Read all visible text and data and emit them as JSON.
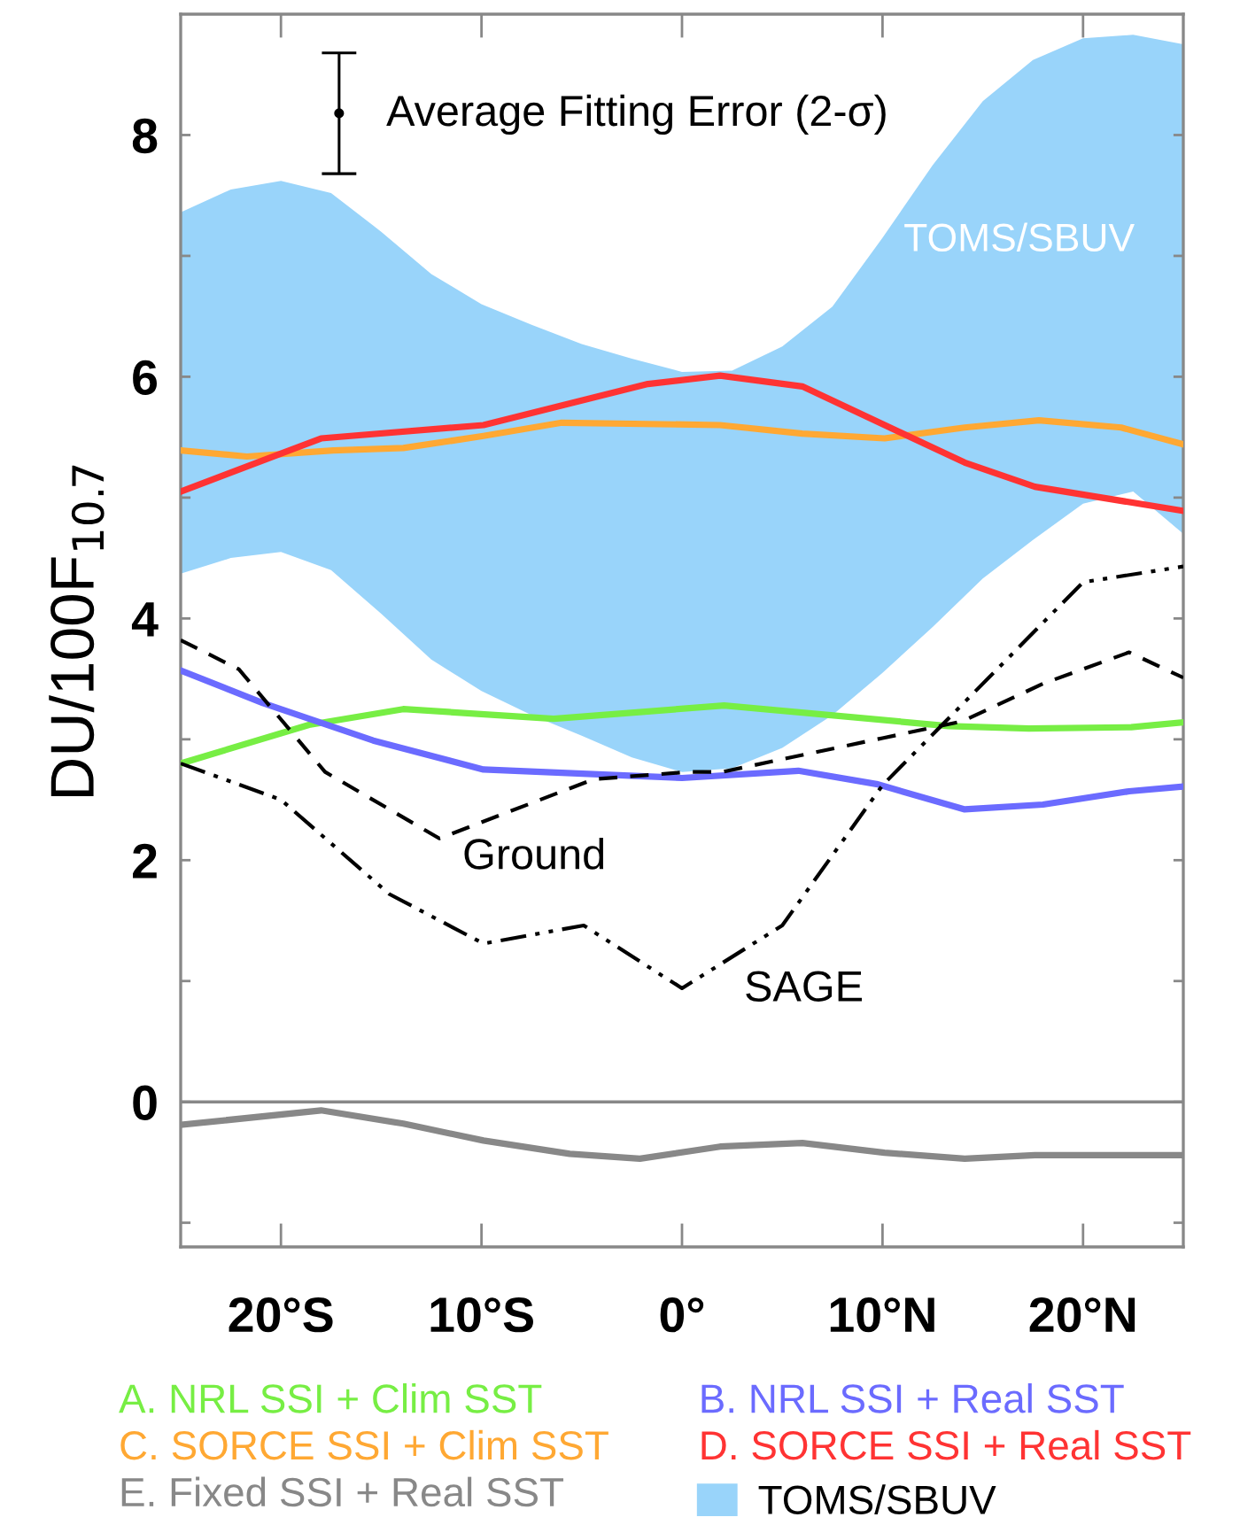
{
  "chart_data": {
    "type": "line",
    "xlim": [
      -25,
      25
    ],
    "xticks": [
      {
        "value": -20,
        "label": "20°S"
      },
      {
        "value": -10,
        "label": "10°S"
      },
      {
        "value": 0,
        "label": "0°"
      },
      {
        "value": 10,
        "label": "10°N"
      },
      {
        "value": 20,
        "label": "20°N"
      }
    ],
    "ylim": [
      -1.2,
      9
    ],
    "yticks": [
      {
        "value": -1,
        "label": null
      },
      0,
      {
        "value": 1,
        "label": null
      },
      2,
      {
        "value": 3,
        "label": null
      },
      4,
      {
        "value": 5,
        "label": null
      },
      6,
      {
        "value": 7,
        "label": null
      },
      8
    ],
    "ylabel": "DU/100F$_{10.7}$",
    "grid": false,
    "legend": "bottom",
    "series": [
      {
        "name": "A. NRL SSI + Clim SST",
        "color": "#77ee44",
        "line_style": "solid",
        "x": [
          -25,
          -18.6,
          -13.9,
          -6.4,
          2.1,
          13.3,
          17.3,
          22.4,
          25
        ],
        "values": [
          2.8,
          3.12,
          3.25,
          3.17,
          3.28,
          3.11,
          3.09,
          3.1,
          3.14
        ]
      },
      {
        "name": "B. NRL SSI + Real SST",
        "color": "#6b6bff",
        "line_style": "solid",
        "x": [
          -25,
          -20.9,
          -15.4,
          -9.9,
          0,
          5.8,
          9.7,
          14.1,
          18,
          22.3,
          25
        ],
        "values": [
          3.57,
          3.3,
          2.99,
          2.75,
          2.68,
          2.74,
          2.63,
          2.42,
          2.46,
          2.57,
          2.61
        ]
      },
      {
        "name": "C. SORCE SSI + Clim SST",
        "color": "#ffa833",
        "line_style": "solid",
        "x": [
          -25,
          -21.7,
          -17.4,
          -13.9,
          -9.9,
          -6,
          1.9,
          6,
          10.1,
          14.1,
          17.8,
          21.9,
          25
        ],
        "values": [
          5.39,
          5.34,
          5.39,
          5.41,
          5.51,
          5.62,
          5.6,
          5.53,
          5.49,
          5.58,
          5.64,
          5.58,
          5.44
        ]
      },
      {
        "name": "D. SORCE SSI + Real SST",
        "color": "#ff3333",
        "line_style": "solid",
        "x": [
          -25,
          -18,
          -9.9,
          -1.7,
          1.9,
          6,
          14.1,
          17.6,
          25
        ],
        "values": [
          5.05,
          5.49,
          5.6,
          5.94,
          6.01,
          5.92,
          5.29,
          5.09,
          4.89
        ]
      },
      {
        "name": "E. Fixed SSI + Real SST",
        "color": "#888888",
        "line_style": "solid",
        "x": [
          -25,
          -18,
          -13.9,
          -9.9,
          -5.6,
          -2.1,
          1.9,
          6,
          10.1,
          14.1,
          17.6,
          25
        ],
        "values": [
          -0.19,
          -0.07,
          -0.18,
          -0.32,
          -0.43,
          -0.47,
          -0.37,
          -0.34,
          -0.42,
          -0.47,
          -0.44,
          -0.44
        ]
      },
      {
        "name": "TOMS/SBUV",
        "color": "#99d4fa",
        "x": [
          -25,
          -22.5,
          -20,
          -17.5,
          -15,
          -12.5,
          -10,
          -7.5,
          -5,
          -2.5,
          0,
          2.5,
          5,
          7.5,
          10,
          12.5,
          15,
          17.5,
          20,
          22.5,
          25
        ],
        "values": [
          null,
          null,
          null,
          null,
          null,
          null,
          null,
          null,
          null,
          null,
          null,
          null,
          null,
          null,
          null,
          null,
          null,
          null,
          null,
          null,
          null
        ],
        "lower": [
          4.37,
          4.5,
          4.55,
          4.4,
          4.04,
          3.66,
          3.4,
          3.2,
          3.03,
          2.85,
          2.73,
          2.76,
          2.93,
          3.2,
          3.55,
          3.93,
          4.33,
          4.65,
          4.95,
          5.05,
          4.7
        ],
        "upper": [
          7.36,
          7.55,
          7.62,
          7.52,
          7.2,
          6.85,
          6.6,
          6.43,
          6.27,
          6.15,
          6.04,
          6.05,
          6.25,
          6.58,
          7.15,
          7.75,
          8.28,
          8.62,
          8.8,
          8.83,
          8.75
        ]
      },
      {
        "color": "#000000",
        "line_style": "dashed",
        "x": [
          -25,
          -22.1,
          -17.8,
          -12.1,
          -4.4,
          0.3,
          2,
          10,
          14,
          18,
          22.3,
          25
        ],
        "values": [
          3.82,
          3.58,
          2.73,
          2.18,
          2.67,
          2.73,
          2.73,
          3.01,
          3.15,
          3.46,
          3.72,
          3.51
        ]
      },
      {
        "color": "#000000",
        "line_style": "dashdot",
        "x": [
          -25,
          -20,
          -14.6,
          -9.9,
          -4.9,
          0,
          5,
          10,
          20,
          25
        ],
        "values": [
          2.8,
          2.5,
          1.72,
          1.31,
          1.46,
          0.94,
          1.46,
          2.62,
          4.3,
          4.43
        ]
      },
      {
        "type": "scatter",
        "color": "#000000",
        "marker": "circle",
        "x": [
          -17.1
        ],
        "values": [
          8.18
        ],
        "errors": [
          0.5
        ]
      }
    ],
    "ref_lines": [
      {
        "axis": "y",
        "value": 0,
        "color": "#888888"
      }
    ],
    "annotations": [
      "Average Fitting Error (2-σ)",
      "TOMS/SBUV",
      {
        "text": "Ground",
        "x": -12.1,
        "y": 2.18
      },
      {
        "text": "SAGE",
        "x": 0,
        "y": 0.94
      }
    ]
  }
}
